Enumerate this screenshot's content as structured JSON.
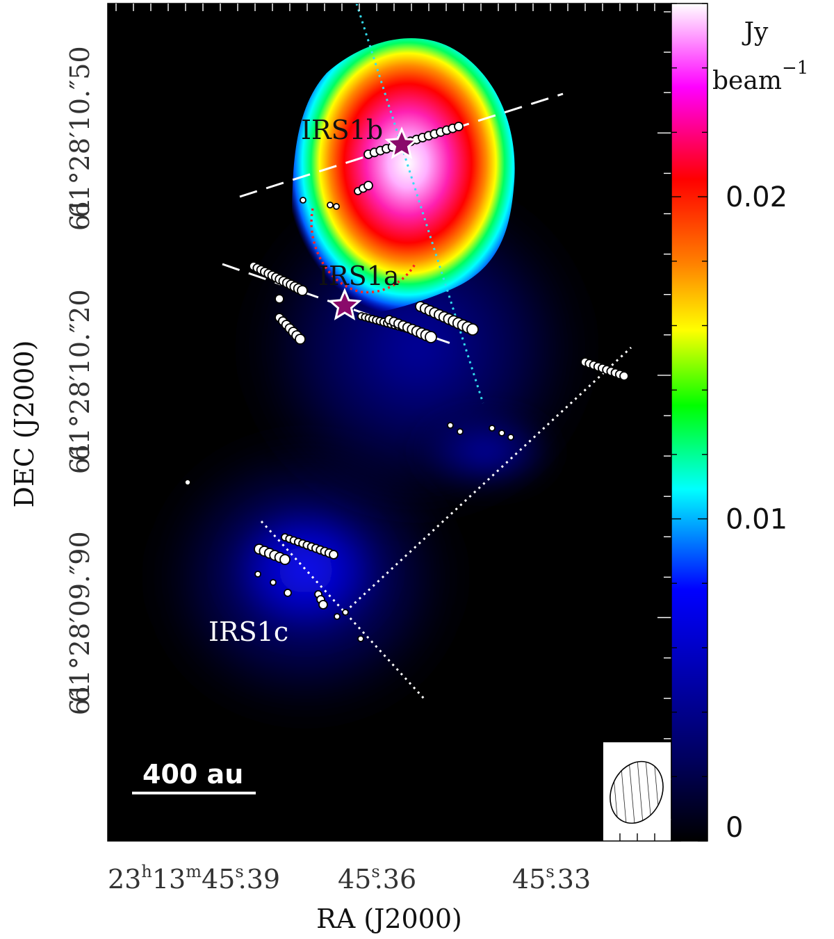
{
  "chart_data": {
    "type": "heatmap",
    "title": "",
    "xlabel": "RA (J2000)",
    "ylabel": "DEC (J2000)",
    "x_ticks": [
      {
        "label": "23h13m45.s39",
        "hms": {
          "h": "23",
          "m": "13",
          "s": "45",
          "frac": "39"
        }
      },
      {
        "label": "45.s36",
        "hms": {
          "s": "45",
          "frac": "36"
        }
      },
      {
        "label": "45.s33",
        "hms": {
          "s": "45",
          "frac": "33"
        }
      }
    ],
    "y_ticks": [
      {
        "label": "61°28′10.″50",
        "deg": "61°28′10",
        "frac": "50"
      },
      {
        "label": "61°28′10.″20",
        "deg": "61°28′10",
        "frac": "20"
      },
      {
        "label": "61°28′09.″90",
        "deg": "61°28′09",
        "frac": "90"
      }
    ],
    "y_ticks_partial": [
      "61",
      "61",
      "61"
    ],
    "colorbar": {
      "unit_line1": "Jy",
      "unit_line2": "beam",
      "unit_exp": "−1",
      "tick_labels": [
        "0.02",
        "0.01",
        "0"
      ],
      "tick_values": [
        0.02,
        0.01,
        0
      ],
      "range": [
        0,
        0.026
      ],
      "colormap": [
        "#000000",
        "#0000ff",
        "#00ffff",
        "#00ff00",
        "#ffff00",
        "#ff8000",
        "#ff0000",
        "#ff00ff",
        "#ffffff"
      ]
    },
    "sources": [
      {
        "name": "IRS1a",
        "marker": "star"
      },
      {
        "name": "IRS1b",
        "marker": "star"
      },
      {
        "name": "IRS1c",
        "marker": "none"
      }
    ],
    "scale_bar": "400 au",
    "beam": "hatched ellipse",
    "colors": {
      "background": "#000000",
      "star_fill": "#8a0a6a",
      "star_stroke": "#ffffff",
      "maser_spots": "#ffffff",
      "outflow_axis_cyan": "#33ddee",
      "arc_red": "#ff2222"
    }
  }
}
